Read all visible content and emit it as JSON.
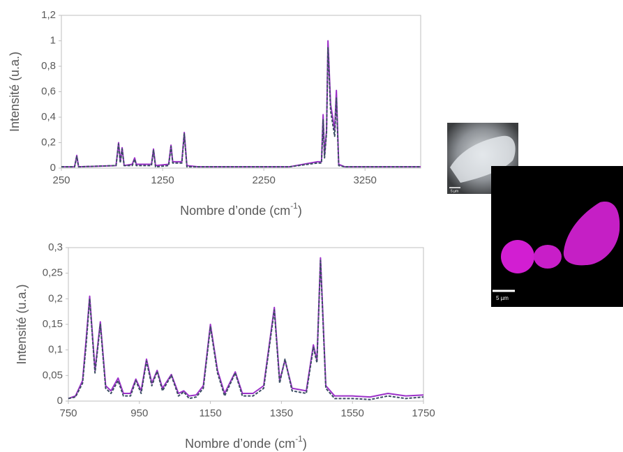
{
  "chart_data": [
    {
      "type": "line",
      "ylabel": "Intensité (u.a.)",
      "xlabel": {
        "text": "Nombre d’onde (cm",
        "superscript": "-1",
        "suffix": ")"
      },
      "xlim": [
        250,
        3800
      ],
      "xticks": [
        250,
        1250,
        2250,
        3250
      ],
      "ylim": [
        0,
        1.2
      ],
      "yticks": [
        0,
        {
          "value": 0.2,
          "label": "0,2"
        },
        {
          "value": 0.4,
          "label": "0,4"
        },
        {
          "value": 0.6,
          "label": "0,6"
        },
        {
          "value": 0.8,
          "label": "0,8"
        },
        1,
        {
          "value": 1.2,
          "label": "1,2"
        }
      ],
      "grid": false,
      "x": [
        250,
        380,
        402,
        420,
        790,
        815,
        832,
        850,
        870,
        950,
        974,
        990,
        1140,
        1160,
        1180,
        1310,
        1333,
        1350,
        1440,
        1464,
        1490,
        1600,
        2500,
        2780,
        2820,
        2836,
        2850,
        2870,
        2884,
        2910,
        2950,
        2967,
        2990,
        3050,
        3800
      ],
      "series": [
        {
          "color": "#9b30c8",
          "dash": false,
          "values": [
            0.01,
            0.01,
            0.1,
            0.01,
            0.02,
            0.2,
            0.05,
            0.16,
            0.02,
            0.03,
            0.08,
            0.03,
            0.03,
            0.15,
            0.02,
            0.03,
            0.18,
            0.05,
            0.05,
            0.28,
            0.02,
            0.01,
            0.01,
            0.05,
            0.05,
            0.42,
            0.1,
            0.3,
            1.0,
            0.5,
            0.3,
            0.61,
            0.03,
            0.01,
            0.01
          ]
        },
        {
          "color": "#3b4d63",
          "dash": true,
          "values": [
            0.01,
            0.01,
            0.09,
            0.01,
            0.02,
            0.19,
            0.04,
            0.15,
            0.02,
            0.02,
            0.07,
            0.02,
            0.02,
            0.14,
            0.01,
            0.02,
            0.17,
            0.04,
            0.04,
            0.27,
            0.01,
            0.01,
            0.01,
            0.04,
            0.04,
            0.38,
            0.08,
            0.28,
            0.95,
            0.45,
            0.25,
            0.55,
            0.02,
            0.01,
            0.01
          ]
        }
      ]
    },
    {
      "type": "line",
      "ylabel": "Intensité (u.a.)",
      "xlabel": {
        "text": "Nombre d’onde (cm",
        "superscript": "-1",
        "suffix": ")"
      },
      "xlim": [
        750,
        1750
      ],
      "xticks": [
        750,
        950,
        1150,
        1350,
        1550,
        1750
      ],
      "ylim": [
        0,
        0.3
      ],
      "yticks": [
        0,
        {
          "value": 0.05,
          "label": "0,05"
        },
        {
          "value": 0.1,
          "label": "0,1"
        },
        {
          "value": 0.15,
          "label": "0,15"
        },
        {
          "value": 0.2,
          "label": "0,2"
        },
        {
          "value": 0.25,
          "label": "0,25"
        },
        {
          "value": 0.3,
          "label": "0,3"
        }
      ],
      "grid": false,
      "x": [
        750,
        770,
        790,
        800,
        810,
        825,
        840,
        855,
        870,
        890,
        905,
        925,
        940,
        955,
        970,
        985,
        1000,
        1015,
        1040,
        1060,
        1075,
        1090,
        1110,
        1130,
        1150,
        1170,
        1190,
        1220,
        1240,
        1270,
        1300,
        1330,
        1345,
        1360,
        1380,
        1420,
        1440,
        1450,
        1460,
        1475,
        1500,
        1550,
        1600,
        1650,
        1700,
        1750
      ],
      "series": [
        {
          "color": "#9b30c8",
          "dash": false,
          "values": [
            0.005,
            0.01,
            0.04,
            0.12,
            0.205,
            0.06,
            0.155,
            0.03,
            0.02,
            0.045,
            0.015,
            0.015,
            0.043,
            0.02,
            0.082,
            0.035,
            0.06,
            0.025,
            0.052,
            0.015,
            0.02,
            0.01,
            0.012,
            0.03,
            0.15,
            0.06,
            0.015,
            0.057,
            0.015,
            0.015,
            0.03,
            0.183,
            0.04,
            0.08,
            0.025,
            0.02,
            0.11,
            0.08,
            0.28,
            0.03,
            0.01,
            0.01,
            0.008,
            0.015,
            0.01,
            0.012
          ]
        },
        {
          "color": "#3b4d63",
          "dash": true,
          "values": [
            0.005,
            0.008,
            0.035,
            0.11,
            0.2,
            0.055,
            0.15,
            0.025,
            0.015,
            0.04,
            0.01,
            0.01,
            0.04,
            0.015,
            0.078,
            0.03,
            0.058,
            0.02,
            0.05,
            0.01,
            0.018,
            0.005,
            0.008,
            0.025,
            0.145,
            0.055,
            0.01,
            0.055,
            0.01,
            0.01,
            0.025,
            0.178,
            0.035,
            0.082,
            0.02,
            0.015,
            0.105,
            0.075,
            0.275,
            0.025,
            0.005,
            0.005,
            0.003,
            0.01,
            0.005,
            0.008
          ]
        }
      ]
    }
  ],
  "images": [
    {
      "scale_label": "5 µm"
    },
    {
      "scale_label": "5 µm"
    }
  ]
}
